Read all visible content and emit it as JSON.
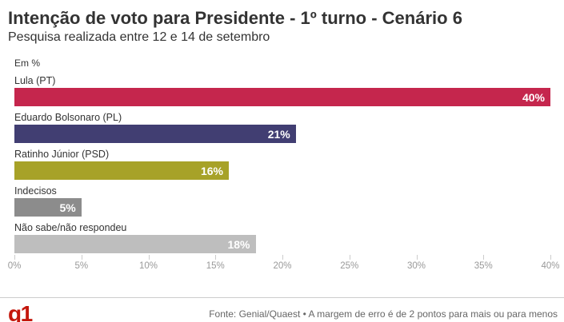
{
  "header": {
    "title": "Intenção de voto para Presidente - 1º turno - Cenário 6",
    "subtitle": "Pesquisa realizada entre 12 e 14 de setembro"
  },
  "chart_data": {
    "type": "bar",
    "orientation": "horizontal",
    "unit_label": "Em %",
    "categories": [
      "Lula (PT)",
      "Eduardo Bolsonaro (PL)",
      "Ratinho Júnior (PSD)",
      "Indecisos",
      "Não sabe/não respondeu"
    ],
    "values": [
      40,
      21,
      16,
      5,
      18
    ],
    "value_labels": [
      "40%",
      "21%",
      "16%",
      "5%",
      "18%"
    ],
    "bar_colors": [
      "#C5264D",
      "#413E72",
      "#A7A228",
      "#8C8C8C",
      "#BEBEBE"
    ],
    "value_label_color": "#ffffff",
    "value_label_position": "inside-right",
    "xlim": [
      0,
      40
    ],
    "x_ticks": [
      "0%",
      "5%",
      "10%",
      "15%",
      "20%",
      "25%",
      "30%",
      "35%",
      "40%"
    ],
    "grid": false,
    "legend": false
  },
  "footer": {
    "logo": "g1",
    "logo_color": "#C4170C",
    "source": "Fonte: Genial/Quaest • A margem de erro é de 2 pontos para mais ou para menos"
  }
}
